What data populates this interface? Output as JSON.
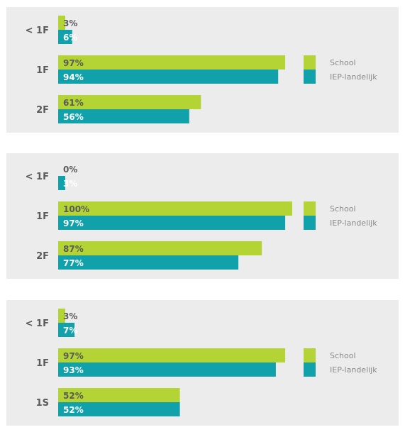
{
  "colors": {
    "school": "#b4d334",
    "iep": "#10a1ab",
    "panel_bg": "#ececec",
    "label": "#5a5a5a"
  },
  "chart_data": [
    {
      "type": "bar",
      "orientation": "horizontal",
      "categories": [
        "< 1F",
        "1F",
        "2F"
      ],
      "series": [
        {
          "name": "School",
          "values": [
            3,
            97,
            61
          ]
        },
        {
          "name": "IEP-landelijk",
          "values": [
            6,
            94,
            56
          ]
        }
      ],
      "value_labels": {
        "School": [
          "3%",
          "97%",
          "61%"
        ],
        "IEP-landelijk": [
          "6%",
          "94%",
          "56%"
        ]
      },
      "xlim": [
        0,
        100
      ],
      "legend": "right"
    },
    {
      "type": "bar",
      "orientation": "horizontal",
      "categories": [
        "< 1F",
        "1F",
        "2F"
      ],
      "series": [
        {
          "name": "School",
          "values": [
            0,
            100,
            87
          ]
        },
        {
          "name": "IEP-landelijk",
          "values": [
            3,
            97,
            77
          ]
        }
      ],
      "value_labels": {
        "School": [
          "0%",
          "100%",
          "87%"
        ],
        "IEP-landelijk": [
          "3%",
          "97%",
          "77%"
        ]
      },
      "xlim": [
        0,
        100
      ],
      "legend": "right"
    },
    {
      "type": "bar",
      "orientation": "horizontal",
      "categories": [
        "< 1F",
        "1F",
        "1S"
      ],
      "series": [
        {
          "name": "School",
          "values": [
            3,
            97,
            52
          ]
        },
        {
          "name": "IEP-landelijk",
          "values": [
            7,
            93,
            52
          ]
        }
      ],
      "value_labels": {
        "School": [
          "3%",
          "97%",
          "52%"
        ],
        "IEP-landelijk": [
          "7%",
          "93%",
          "52%"
        ]
      },
      "xlim": [
        0,
        100
      ],
      "legend": "right"
    }
  ]
}
